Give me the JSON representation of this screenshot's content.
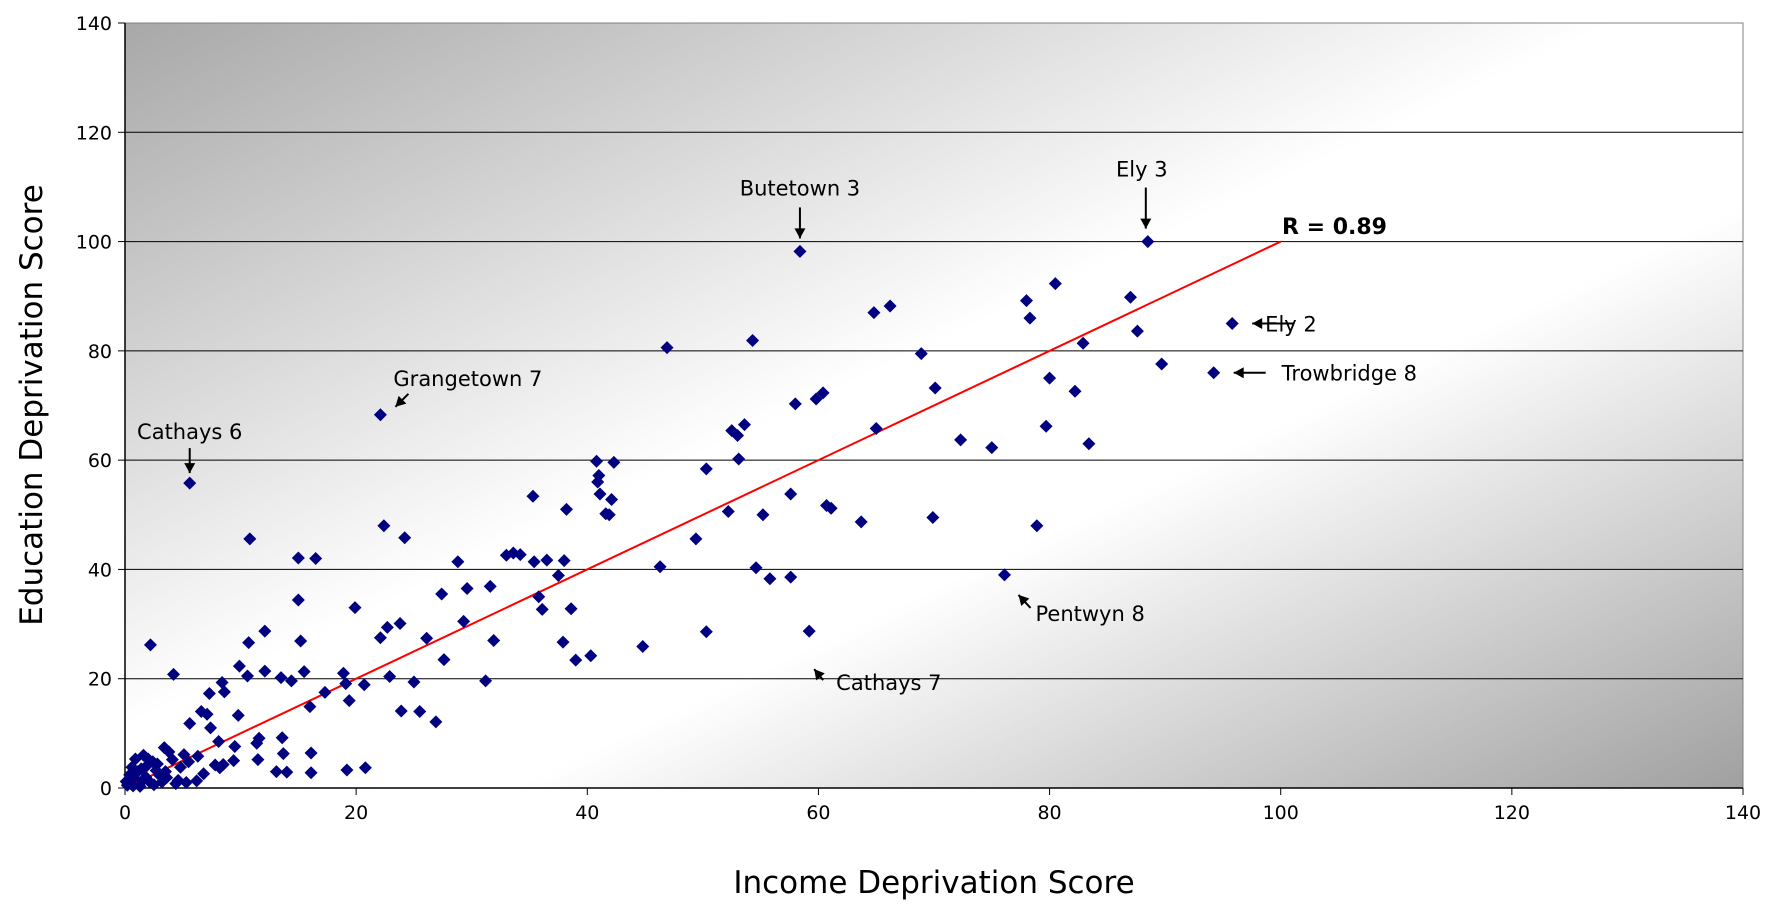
{
  "chart_data": {
    "type": "scatter",
    "title": "",
    "xlabel": "Income Deprivation Score",
    "ylabel": "Education Deprivation Score",
    "xlim": [
      0,
      140
    ],
    "ylim": [
      0,
      140
    ],
    "xticks": [
      0,
      20,
      40,
      60,
      80,
      100,
      120,
      140
    ],
    "yticks": [
      0,
      20,
      40,
      60,
      80,
      100,
      120,
      140
    ],
    "grid": "horizontal",
    "marker_color": "#000080",
    "trendline": {
      "color": "#ff0000",
      "from": [
        0,
        0
      ],
      "to": [
        100,
        100
      ],
      "label": "R = 0.89"
    },
    "annotations": [
      {
        "text": "Butetown 3",
        "x": 58.4,
        "y": 98.2
      },
      {
        "text": "Ely 3",
        "x": 88.5,
        "y": 100
      },
      {
        "text": "Ely 2",
        "x": 95.8,
        "y": 85
      },
      {
        "text": "Trowbridge  8",
        "x": 94.2,
        "y": 76
      },
      {
        "text": "Grangetown 7",
        "x": 22.1,
        "y": 68.3
      },
      {
        "text": "Cathays 6",
        "x": 5.6,
        "y": 55.8
      },
      {
        "text": "Pentwyn 8",
        "x": 76.1,
        "y": 39
      },
      {
        "text": "Cathays 7",
        "x": 59.2,
        "y": 28.7
      }
    ],
    "points": [
      [
        88.5,
        100
      ],
      [
        58.4,
        98.2
      ],
      [
        95.8,
        85
      ],
      [
        94.2,
        76
      ],
      [
        89.7,
        77.6
      ],
      [
        87,
        89.8
      ],
      [
        87.6,
        83.6
      ],
      [
        80.5,
        92.3
      ],
      [
        78.3,
        86
      ],
      [
        78,
        89.2
      ],
      [
        82.9,
        81.4
      ],
      [
        83.4,
        63
      ],
      [
        79.7,
        66.2
      ],
      [
        80,
        75
      ],
      [
        82.2,
        72.6
      ],
      [
        78.9,
        48
      ],
      [
        76.1,
        39
      ],
      [
        75,
        62.3
      ],
      [
        72.3,
        63.7
      ],
      [
        70.1,
        73.2
      ],
      [
        69.9,
        49.5
      ],
      [
        68.9,
        79.5
      ],
      [
        66.2,
        88.2
      ],
      [
        64.8,
        87
      ],
      [
        65,
        65.8
      ],
      [
        63.7,
        48.7
      ],
      [
        61.1,
        51.2
      ],
      [
        60.7,
        51.7
      ],
      [
        60.4,
        72.3
      ],
      [
        59.8,
        71.2
      ],
      [
        58,
        70.3
      ],
      [
        59.2,
        28.7
      ],
      [
        57.6,
        53.8
      ],
      [
        57.6,
        38.6
      ],
      [
        55.8,
        38.3
      ],
      [
        55.2,
        50
      ],
      [
        54.6,
        40.3
      ],
      [
        54.3,
        81.9
      ],
      [
        53.6,
        66.5
      ],
      [
        53,
        64.5
      ],
      [
        53.1,
        60.2
      ],
      [
        52.5,
        65.4
      ],
      [
        52.2,
        50.6
      ],
      [
        50.3,
        58.4
      ],
      [
        50.3,
        28.6
      ],
      [
        49.4,
        45.6
      ],
      [
        46.9,
        80.6
      ],
      [
        46.3,
        40.5
      ],
      [
        44.8,
        25.9
      ],
      [
        42.3,
        59.6
      ],
      [
        42.1,
        52.8
      ],
      [
        41.9,
        50
      ],
      [
        41.6,
        50.2
      ],
      [
        41.1,
        53.8
      ],
      [
        41,
        57.2
      ],
      [
        40.9,
        56
      ],
      [
        40.8,
        59.8
      ],
      [
        40.3,
        24.2
      ],
      [
        39,
        23.4
      ],
      [
        38.6,
        32.8
      ],
      [
        38.2,
        51
      ],
      [
        38,
        41.6
      ],
      [
        37.9,
        26.7
      ],
      [
        37.5,
        38.9
      ],
      [
        36.5,
        41.7
      ],
      [
        36.1,
        32.7
      ],
      [
        35.8,
        35
      ],
      [
        35.4,
        41.4
      ],
      [
        35.3,
        53.4
      ],
      [
        34.2,
        42.7
      ],
      [
        33.6,
        43
      ],
      [
        33,
        42.6
      ],
      [
        31.9,
        27
      ],
      [
        31.6,
        36.9
      ],
      [
        31.2,
        19.6
      ],
      [
        29.6,
        36.5
      ],
      [
        29.3,
        30.5
      ],
      [
        28.8,
        41.4
      ],
      [
        27.6,
        23.5
      ],
      [
        27.4,
        35.5
      ],
      [
        26.9,
        12.1
      ],
      [
        26.1,
        27.4
      ],
      [
        25.5,
        14
      ],
      [
        25,
        19.4
      ],
      [
        24.2,
        45.8
      ],
      [
        23.9,
        14.1
      ],
      [
        23.8,
        30.1
      ],
      [
        22.9,
        20.4
      ],
      [
        22.7,
        29.4
      ],
      [
        22.4,
        48
      ],
      [
        22.1,
        68.3
      ],
      [
        22.1,
        27.5
      ],
      [
        20.8,
        3.7
      ],
      [
        20.7,
        18.9
      ],
      [
        19.9,
        33
      ],
      [
        19.4,
        16
      ],
      [
        19.2,
        3.3
      ],
      [
        19.1,
        19.1
      ],
      [
        18.9,
        21
      ],
      [
        17.3,
        17.5
      ],
      [
        16.5,
        42
      ],
      [
        16.1,
        6.4
      ],
      [
        16.1,
        2.8
      ],
      [
        16,
        14.9
      ],
      [
        15.5,
        21.3
      ],
      [
        15.2,
        26.9
      ],
      [
        15,
        34.4
      ],
      [
        15,
        42.1
      ],
      [
        14.4,
        19.6
      ],
      [
        14,
        2.9
      ],
      [
        13.7,
        6.3
      ],
      [
        13.6,
        9.2
      ],
      [
        13.5,
        20.2
      ],
      [
        13.1,
        3
      ],
      [
        12.1,
        28.7
      ],
      [
        12.1,
        21.4
      ],
      [
        11.6,
        9.1
      ],
      [
        11.5,
        5.2
      ],
      [
        11.4,
        8.2
      ],
      [
        10.8,
        45.6
      ],
      [
        10.7,
        26.6
      ],
      [
        10.6,
        20.5
      ],
      [
        9.9,
        22.3
      ],
      [
        9.8,
        13.3
      ],
      [
        9.5,
        7.6
      ],
      [
        9.4,
        5
      ],
      [
        8.6,
        17.6
      ],
      [
        8.5,
        4.3
      ],
      [
        8.4,
        19.3
      ],
      [
        8.2,
        3.7
      ],
      [
        8.1,
        8.5
      ],
      [
        7.8,
        4.2
      ],
      [
        7.4,
        11
      ],
      [
        7.3,
        17.3
      ],
      [
        7.1,
        13.5
      ],
      [
        6.6,
        14
      ],
      [
        6.3,
        5.8
      ],
      [
        6.2,
        1.3
      ],
      [
        5.6,
        55.8
      ],
      [
        5.6,
        11.8
      ],
      [
        5.5,
        4.8
      ],
      [
        5.3,
        1
      ],
      [
        5.1,
        6.1
      ],
      [
        4.8,
        3.8
      ],
      [
        4.6,
        1.4
      ],
      [
        4.2,
        20.8
      ],
      [
        4.1,
        5.2
      ],
      [
        3.8,
        6.6
      ],
      [
        3.5,
        3
      ],
      [
        3.4,
        7.4
      ],
      [
        3.2,
        1.1
      ],
      [
        3,
        2.3
      ],
      [
        2.8,
        4.4
      ],
      [
        2.4,
        4.8
      ],
      [
        2.2,
        26.2
      ],
      [
        2.1,
        1.2
      ],
      [
        2,
        5.3
      ],
      [
        1.8,
        2
      ],
      [
        1.6,
        6
      ],
      [
        1.4,
        3.5
      ],
      [
        1.3,
        0.3
      ],
      [
        1.1,
        3
      ],
      [
        0.9,
        5.3
      ],
      [
        0.8,
        1.8
      ],
      [
        0.6,
        3.8
      ],
      [
        0.5,
        0.8
      ],
      [
        0.4,
        2.4
      ],
      [
        0.3,
        1.5
      ],
      [
        0.2,
        0.5
      ],
      [
        0.1,
        1.2
      ],
      [
        0.7,
        0.4
      ],
      [
        1.5,
        1.3
      ],
      [
        2.5,
        0.6
      ],
      [
        3.6,
        1.9
      ],
      [
        4.4,
        0.8
      ],
      [
        6.8,
        2.6
      ],
      [
        2.7,
        3.2
      ],
      [
        1.9,
        4.1
      ]
    ]
  }
}
